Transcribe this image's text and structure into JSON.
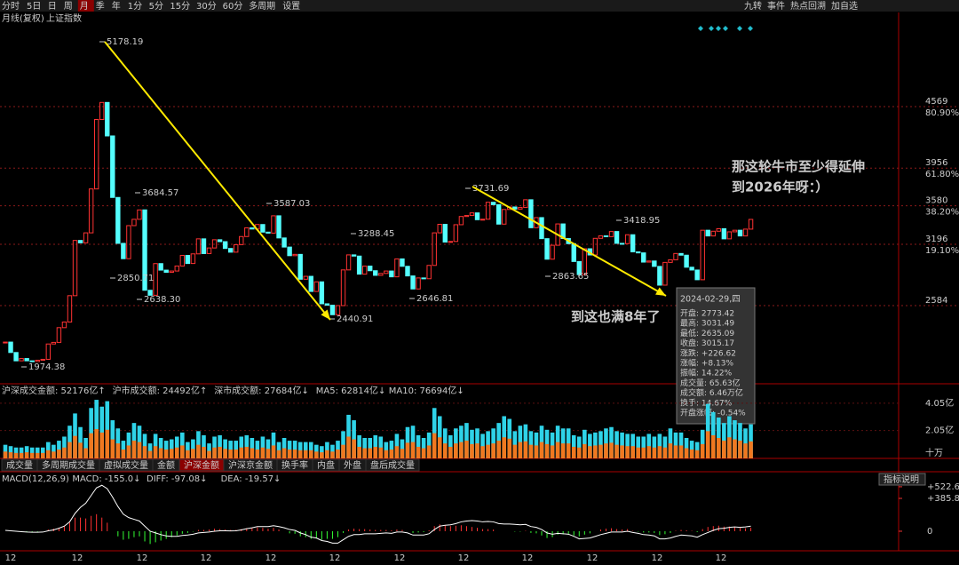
{
  "toolbar": {
    "left": [
      "分时",
      "5日",
      "日",
      "周",
      "月",
      "季",
      "年",
      "1分",
      "5分",
      "15分",
      "30分",
      "60分",
      "多周期",
      "设置"
    ],
    "active": "月",
    "right": [
      "九转",
      "事件",
      "热点回溯",
      "加自选"
    ]
  },
  "header": {
    "period": "月线(复权)",
    "symbol": "上证指数"
  },
  "price_panel": {
    "ylim": [
      1804,
      5509
    ],
    "yticks": [
      4569,
      3956,
      3580,
      3196,
      2584
    ],
    "fib_labels": [
      "80.90%",
      "61.80%",
      "38.20%",
      "19.10%"
    ],
    "closes": [
      2220,
      2116,
      2033,
      2056,
      2033,
      2026,
      2039,
      2048,
      2201,
      2217,
      2364,
      2420,
      2683,
      3234,
      3210,
      3310,
      3748,
      4441,
      4611,
      4277,
      3663,
      3205,
      3052,
      3382,
      3445,
      3539,
      2737,
      2687,
      3003,
      2938,
      2916,
      2929,
      2979,
      3085,
      3004,
      3100,
      3250,
      3103,
      3159,
      3241,
      3222,
      3154,
      3117,
      3192,
      3273,
      3360,
      3348,
      3393,
      3317,
      3307,
      3480,
      3259,
      3168,
      3082,
      3095,
      2847,
      2876,
      2725,
      2821,
      2602,
      2588,
      2493,
      2584,
      2940,
      3090,
      3078,
      2898,
      2978,
      2932,
      2886,
      2905,
      2929,
      2871,
      3050,
      2976,
      2880,
      2750,
      2860,
      2852,
      2985,
      3310,
      3395,
      3218,
      3224,
      3391,
      3473,
      3483,
      3509,
      3441,
      3446,
      3615,
      3591,
      3397,
      3543,
      3568,
      3547,
      3563,
      3640,
      3361,
      3462,
      3252,
      3047,
      3186,
      3399,
      3253,
      3202,
      3024,
      2893,
      3151,
      3089,
      3255,
      3280,
      3272,
      3323,
      3205,
      3202,
      3291,
      3120,
      3110,
      3018,
      3029,
      2975,
      2788,
      3015,
      3041,
      3104,
      3087,
      2967,
      2939,
      2842,
      3336,
      3279,
      3326,
      3351,
      3250,
      3320,
      3336,
      3279,
      3347,
      3444
    ],
    "extreme_labels": [
      "5178.19",
      "3684.57",
      "2850.71",
      "2638.30",
      "3587.03",
      "2440.91",
      "3288.45",
      "2646.81",
      "3731.69",
      "2863.65",
      "3418.95",
      "1974.38"
    ]
  },
  "annotations": [
    "那这轮牛市至少得延伸",
    "到2026年呀：）",
    "到这也满8年了"
  ],
  "tooltip": {
    "date": "2024-02-29,四",
    "rows": [
      "开盘: 2773.42",
      "最高: 3031.49",
      "最低: 2635.09",
      "收盘: 3015.17",
      "涨跌: +226.62",
      "涨幅: +8.13%",
      "振幅: 14.22%",
      "成交量: 65.63亿",
      "成交额: 6.46万亿",
      "换手: 14.67%",
      "开盘涨幅: -0.54%"
    ]
  },
  "volume_panel": {
    "header": [
      "沪深成交金额: 52176亿↑",
      "沪市成交额: 24492亿↑",
      "深市成交额: 27684亿↓",
      "MA5: 62814亿↓",
      "MA10: 76694亿↓"
    ],
    "ylim": [
      0,
      4.5
    ],
    "yticks": [
      {
        "value": 4.05,
        "label": "4.05亿"
      },
      {
        "value": 2.05,
        "label": "2.05亿"
      }
    ],
    "unit": "十万",
    "values": [
      1.0,
      0.9,
      0.8,
      0.8,
      0.9,
      0.8,
      0.8,
      0.8,
      1.2,
      1.0,
      1.3,
      1.6,
      2.4,
      3.3,
      2.3,
      1.5,
      3.7,
      4.3,
      3.8,
      4.2,
      2.8,
      2.2,
      1.3,
      1.9,
      2.6,
      2.4,
      1.8,
      1.1,
      1.8,
      1.5,
      1.3,
      1.4,
      1.6,
      1.9,
      1.2,
      1.4,
      2.0,
      1.7,
      1.1,
      1.6,
      1.7,
      1.4,
      1.3,
      1.3,
      1.6,
      1.7,
      1.5,
      1.3,
      1.6,
      1.4,
      1.9,
      1.2,
      1.5,
      1.3,
      1.3,
      1.2,
      1.2,
      1.2,
      1.0,
      0.9,
      1.2,
      1.0,
      1.3,
      2.0,
      3.2,
      2.8,
      1.7,
      1.5,
      1.5,
      1.7,
      1.6,
      1.2,
      1.3,
      1.8,
      1.4,
      2.3,
      2.4,
      1.7,
      1.5,
      1.9,
      3.7,
      3.1,
      2.2,
      1.7,
      2.2,
      2.4,
      2.6,
      2.1,
      2.2,
      1.8,
      2.0,
      2.2,
      2.6,
      3.1,
      2.9,
      2.0,
      2.4,
      2.5,
      2.0,
      1.9,
      2.4,
      2.1,
      1.9,
      2.4,
      2.2,
      2.2,
      1.7,
      1.6,
      2.1,
      1.8,
      1.9,
      2.0,
      2.2,
      2.3,
      2.0,
      1.9,
      1.8,
      1.8,
      1.6,
      1.6,
      1.8,
      1.6,
      1.8,
      1.6,
      2.2,
      1.9,
      1.9,
      1.5,
      1.3,
      1.2,
      2.1,
      4.0,
      3.4,
      3.0,
      2.6,
      3.1,
      2.8,
      2.6,
      2.2,
      2.5
    ]
  },
  "tabs": {
    "items": [
      "成交量",
      "多周期成交量",
      "虚拟成交量",
      "金额",
      "沪深金额",
      "沪深京金额",
      "换手率",
      "内盘",
      "外盘",
      "盘后成交量"
    ],
    "active": "沪深金额"
  },
  "macd_panel": {
    "header": [
      "MACD(12,26,9)",
      "MACD: -155.0↓",
      "DIFF: -97.08↓",
      "DEA: -19.57↓"
    ],
    "button": "指标说明",
    "ylim": [
      -230,
      553
    ],
    "yticks": [
      {
        "value": 522.6,
        "label": "+522.6"
      },
      {
        "value": 385.8,
        "label": "+385.8"
      },
      0
    ],
    "diff": [
      10,
      5,
      0,
      -5,
      -10,
      -12,
      -12,
      -10,
      5,
      15,
      35,
      60,
      110,
      210,
      280,
      330,
      420,
      510,
      540,
      500,
      400,
      290,
      200,
      160,
      140,
      120,
      60,
      0,
      -20,
      -40,
      -55,
      -60,
      -60,
      -50,
      -45,
      -35,
      -20,
      -15,
      -10,
      0,
      5,
      5,
      3,
      5,
      15,
      30,
      40,
      55,
      55,
      55,
      65,
      55,
      40,
      20,
      10,
      -20,
      -40,
      -70,
      -80,
      -110,
      -120,
      -140,
      -140,
      -100,
      -60,
      -40,
      -40,
      -30,
      -30,
      -30,
      -25,
      -20,
      -25,
      -10,
      -10,
      -20,
      -45,
      -45,
      -45,
      -30,
      20,
      60,
      70,
      75,
      90,
      110,
      120,
      125,
      120,
      110,
      115,
      110,
      90,
      85,
      85,
      80,
      75,
      80,
      55,
      45,
      20,
      -20,
      -35,
      -25,
      -30,
      -35,
      -60,
      -90,
      -85,
      -80,
      -60,
      -40,
      -25,
      -10,
      -10,
      -10,
      0,
      -15,
      -25,
      -40,
      -45,
      -55,
      -90,
      -90,
      -80,
      -60,
      -45,
      -50,
      -55,
      -70,
      -40,
      -15,
      10,
      30,
      35,
      45,
      50,
      45,
      50,
      60
    ],
    "hist": [
      0,
      0,
      -5,
      -8,
      -10,
      -8,
      -5,
      0,
      20,
      30,
      40,
      60,
      100,
      160,
      160,
      150,
      180,
      200,
      160,
      100,
      0,
      -60,
      -100,
      -90,
      -70,
      -60,
      -120,
      -150,
      -130,
      -110,
      -90,
      -70,
      -50,
      -30,
      -20,
      -5,
      15,
      15,
      20,
      30,
      25,
      20,
      15,
      15,
      25,
      35,
      40,
      45,
      40,
      30,
      40,
      20,
      0,
      -25,
      -30,
      -60,
      -70,
      -90,
      -80,
      -100,
      -90,
      -90,
      -70,
      -20,
      20,
      30,
      25,
      25,
      20,
      15,
      15,
      15,
      10,
      20,
      15,
      0,
      -20,
      -15,
      -10,
      10,
      60,
      80,
      70,
      60,
      65,
      70,
      60,
      50,
      40,
      25,
      25,
      20,
      0,
      0,
      0,
      -5,
      -5,
      5,
      -20,
      -25,
      -50,
      -80,
      -70,
      -40,
      -35,
      -30,
      -50,
      -60,
      -40,
      -25,
      0,
      20,
      30,
      35,
      25,
      20,
      25,
      5,
      -5,
      -15,
      -15,
      -20,
      -45,
      -35,
      -20,
      5,
      15,
      10,
      5,
      -10,
      25,
      50,
      60,
      65,
      55,
      55,
      50,
      40,
      35,
      40
    ]
  },
  "x_labels": [
    "12",
    "12",
    "12",
    "12",
    "12",
    "12",
    "12",
    "12",
    "12",
    "12",
    "12",
    "12"
  ]
}
